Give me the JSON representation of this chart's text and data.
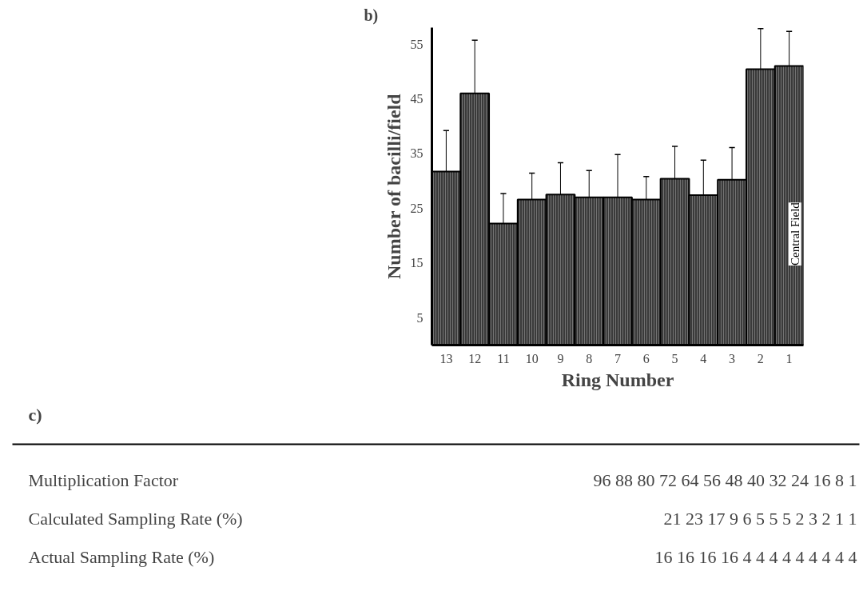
{
  "chart_data": [
    {
      "type": "bar",
      "xlabel": "Ring Number",
      "ylabel": "Number of bacilli/field",
      "categories": [
        "13",
        "12",
        "11",
        "10",
        "9",
        "8",
        "7",
        "6",
        "5",
        "4",
        "3",
        "2",
        "1"
      ],
      "values": [
        31.7,
        46.0,
        22.2,
        26.6,
        27.5,
        27.0,
        27.0,
        26.6,
        30.4,
        27.4,
        30.2,
        50.4,
        51.0
      ],
      "errors": [
        [
          31.7,
          39.2
        ],
        [
          46.0,
          55.7
        ],
        [
          22.2,
          27.7
        ],
        [
          26.6,
          31.4
        ],
        [
          27.5,
          33.3
        ],
        [
          27.0,
          31.9
        ],
        [
          27.0,
          34.8
        ],
        [
          26.6,
          30.8
        ],
        [
          30.4,
          36.3
        ],
        [
          27.4,
          33.8
        ],
        [
          30.2,
          36.1
        ],
        [
          50.4,
          57.8
        ],
        [
          51.0,
          57.3
        ]
      ],
      "color": "#3a3a3a",
      "ylim": [
        0,
        58
      ],
      "yticks": [
        5,
        15,
        25,
        35,
        45,
        55
      ],
      "grid": false,
      "annotations": [
        "b)",
        "Central Field"
      ]
    },
    {
      "type": "other",
      "annotations": [
        "c)",
        "Multiplication Factor",
        "96 88 80 72 64 56 48 40 32 24 16 8 1",
        "Calculated Sampling Rate (%)",
        "21 23 17 9 6 5 5 5 2 3 2 1 1",
        "Actual Sampling Rate (%)",
        "16 16 16 16 4 4 4 4 4 4 4 4 4"
      ]
    }
  ]
}
